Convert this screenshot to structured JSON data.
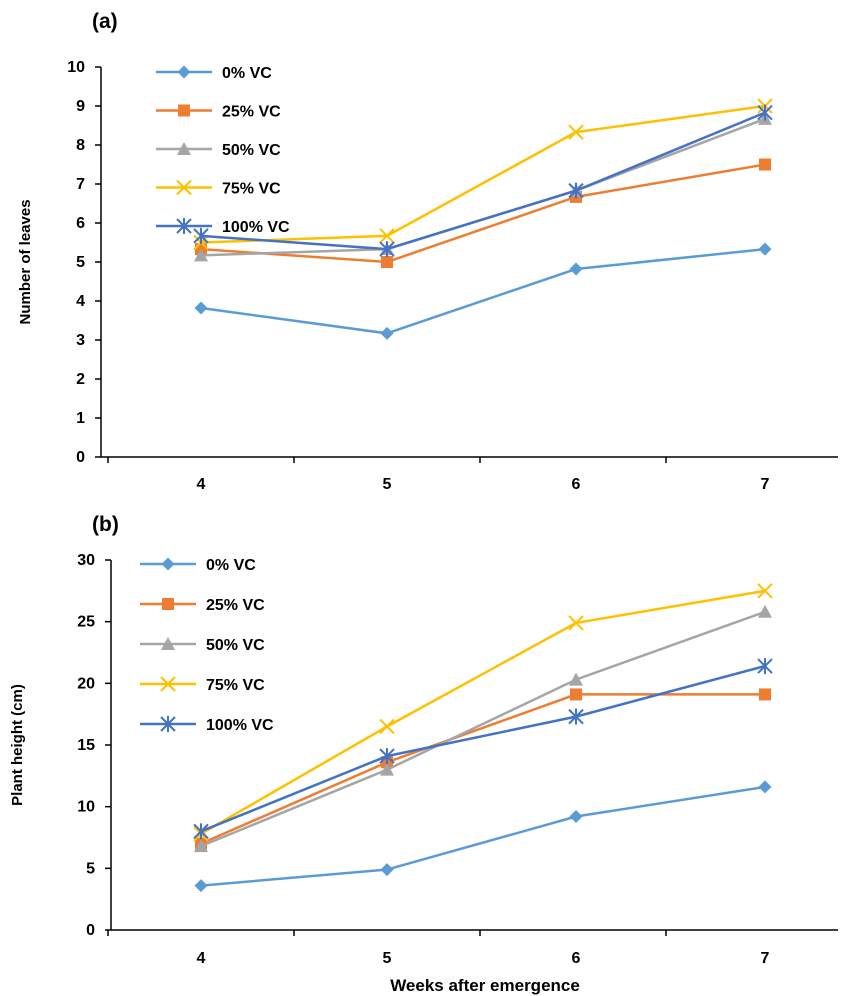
{
  "chart_data": [
    {
      "type": "line",
      "panel_label": "(a)",
      "ylabel": "Number of leaves",
      "xlabel": "",
      "x": [
        4,
        5,
        6,
        7
      ],
      "x_ticks": [
        "4",
        "5",
        "6",
        "7"
      ],
      "ylim": [
        0,
        10
      ],
      "y_ticks": [
        "0",
        "1",
        "2",
        "3",
        "4",
        "5",
        "6",
        "7",
        "8",
        "9",
        "10"
      ],
      "grid": false,
      "legend_position": "top-left",
      "series": [
        {
          "name": "0% VC",
          "color": "#5B9BD5",
          "marker": "diamond",
          "values": [
            3.82,
            3.17,
            4.82,
            5.33
          ]
        },
        {
          "name": "25% VC",
          "color": "#ED7D31",
          "marker": "square",
          "values": [
            5.33,
            5.0,
            6.67,
            7.5
          ]
        },
        {
          "name": "50% VC",
          "color": "#A5A5A5",
          "marker": "triangle",
          "values": [
            5.17,
            5.33,
            6.83,
            8.67
          ]
        },
        {
          "name": "75% VC",
          "color": "#FFC000",
          "marker": "x",
          "values": [
            5.5,
            5.67,
            8.33,
            9.0
          ]
        },
        {
          "name": "100% VC",
          "color": "#4472C4",
          "marker": "star",
          "values": [
            5.67,
            5.33,
            6.83,
            8.83
          ]
        }
      ]
    },
    {
      "type": "line",
      "panel_label": "(b)",
      "ylabel": "Plant height (cm)",
      "xlabel": "Weeks after emergence",
      "x": [
        4,
        5,
        6,
        7
      ],
      "x_ticks": [
        "4",
        "5",
        "6",
        "7"
      ],
      "ylim": [
        0,
        30
      ],
      "y_ticks": [
        "0",
        "5",
        "10",
        "15",
        "20",
        "25",
        "30"
      ],
      "grid": false,
      "legend_position": "top-left",
      "series": [
        {
          "name": "0% VC",
          "color": "#5B9BD5",
          "marker": "diamond",
          "values": [
            3.6,
            4.9,
            9.2,
            11.6
          ]
        },
        {
          "name": "25% VC",
          "color": "#ED7D31",
          "marker": "square",
          "values": [
            7.0,
            13.6,
            19.1,
            19.1
          ]
        },
        {
          "name": "50% VC",
          "color": "#A5A5A5",
          "marker": "triangle",
          "values": [
            6.8,
            13.0,
            20.3,
            25.8
          ]
        },
        {
          "name": "75% VC",
          "color": "#FFC000",
          "marker": "x",
          "values": [
            7.8,
            16.5,
            24.9,
            27.5
          ]
        },
        {
          "name": "100% VC",
          "color": "#4472C4",
          "marker": "star",
          "values": [
            8.0,
            14.1,
            17.3,
            21.4
          ]
        }
      ]
    }
  ]
}
